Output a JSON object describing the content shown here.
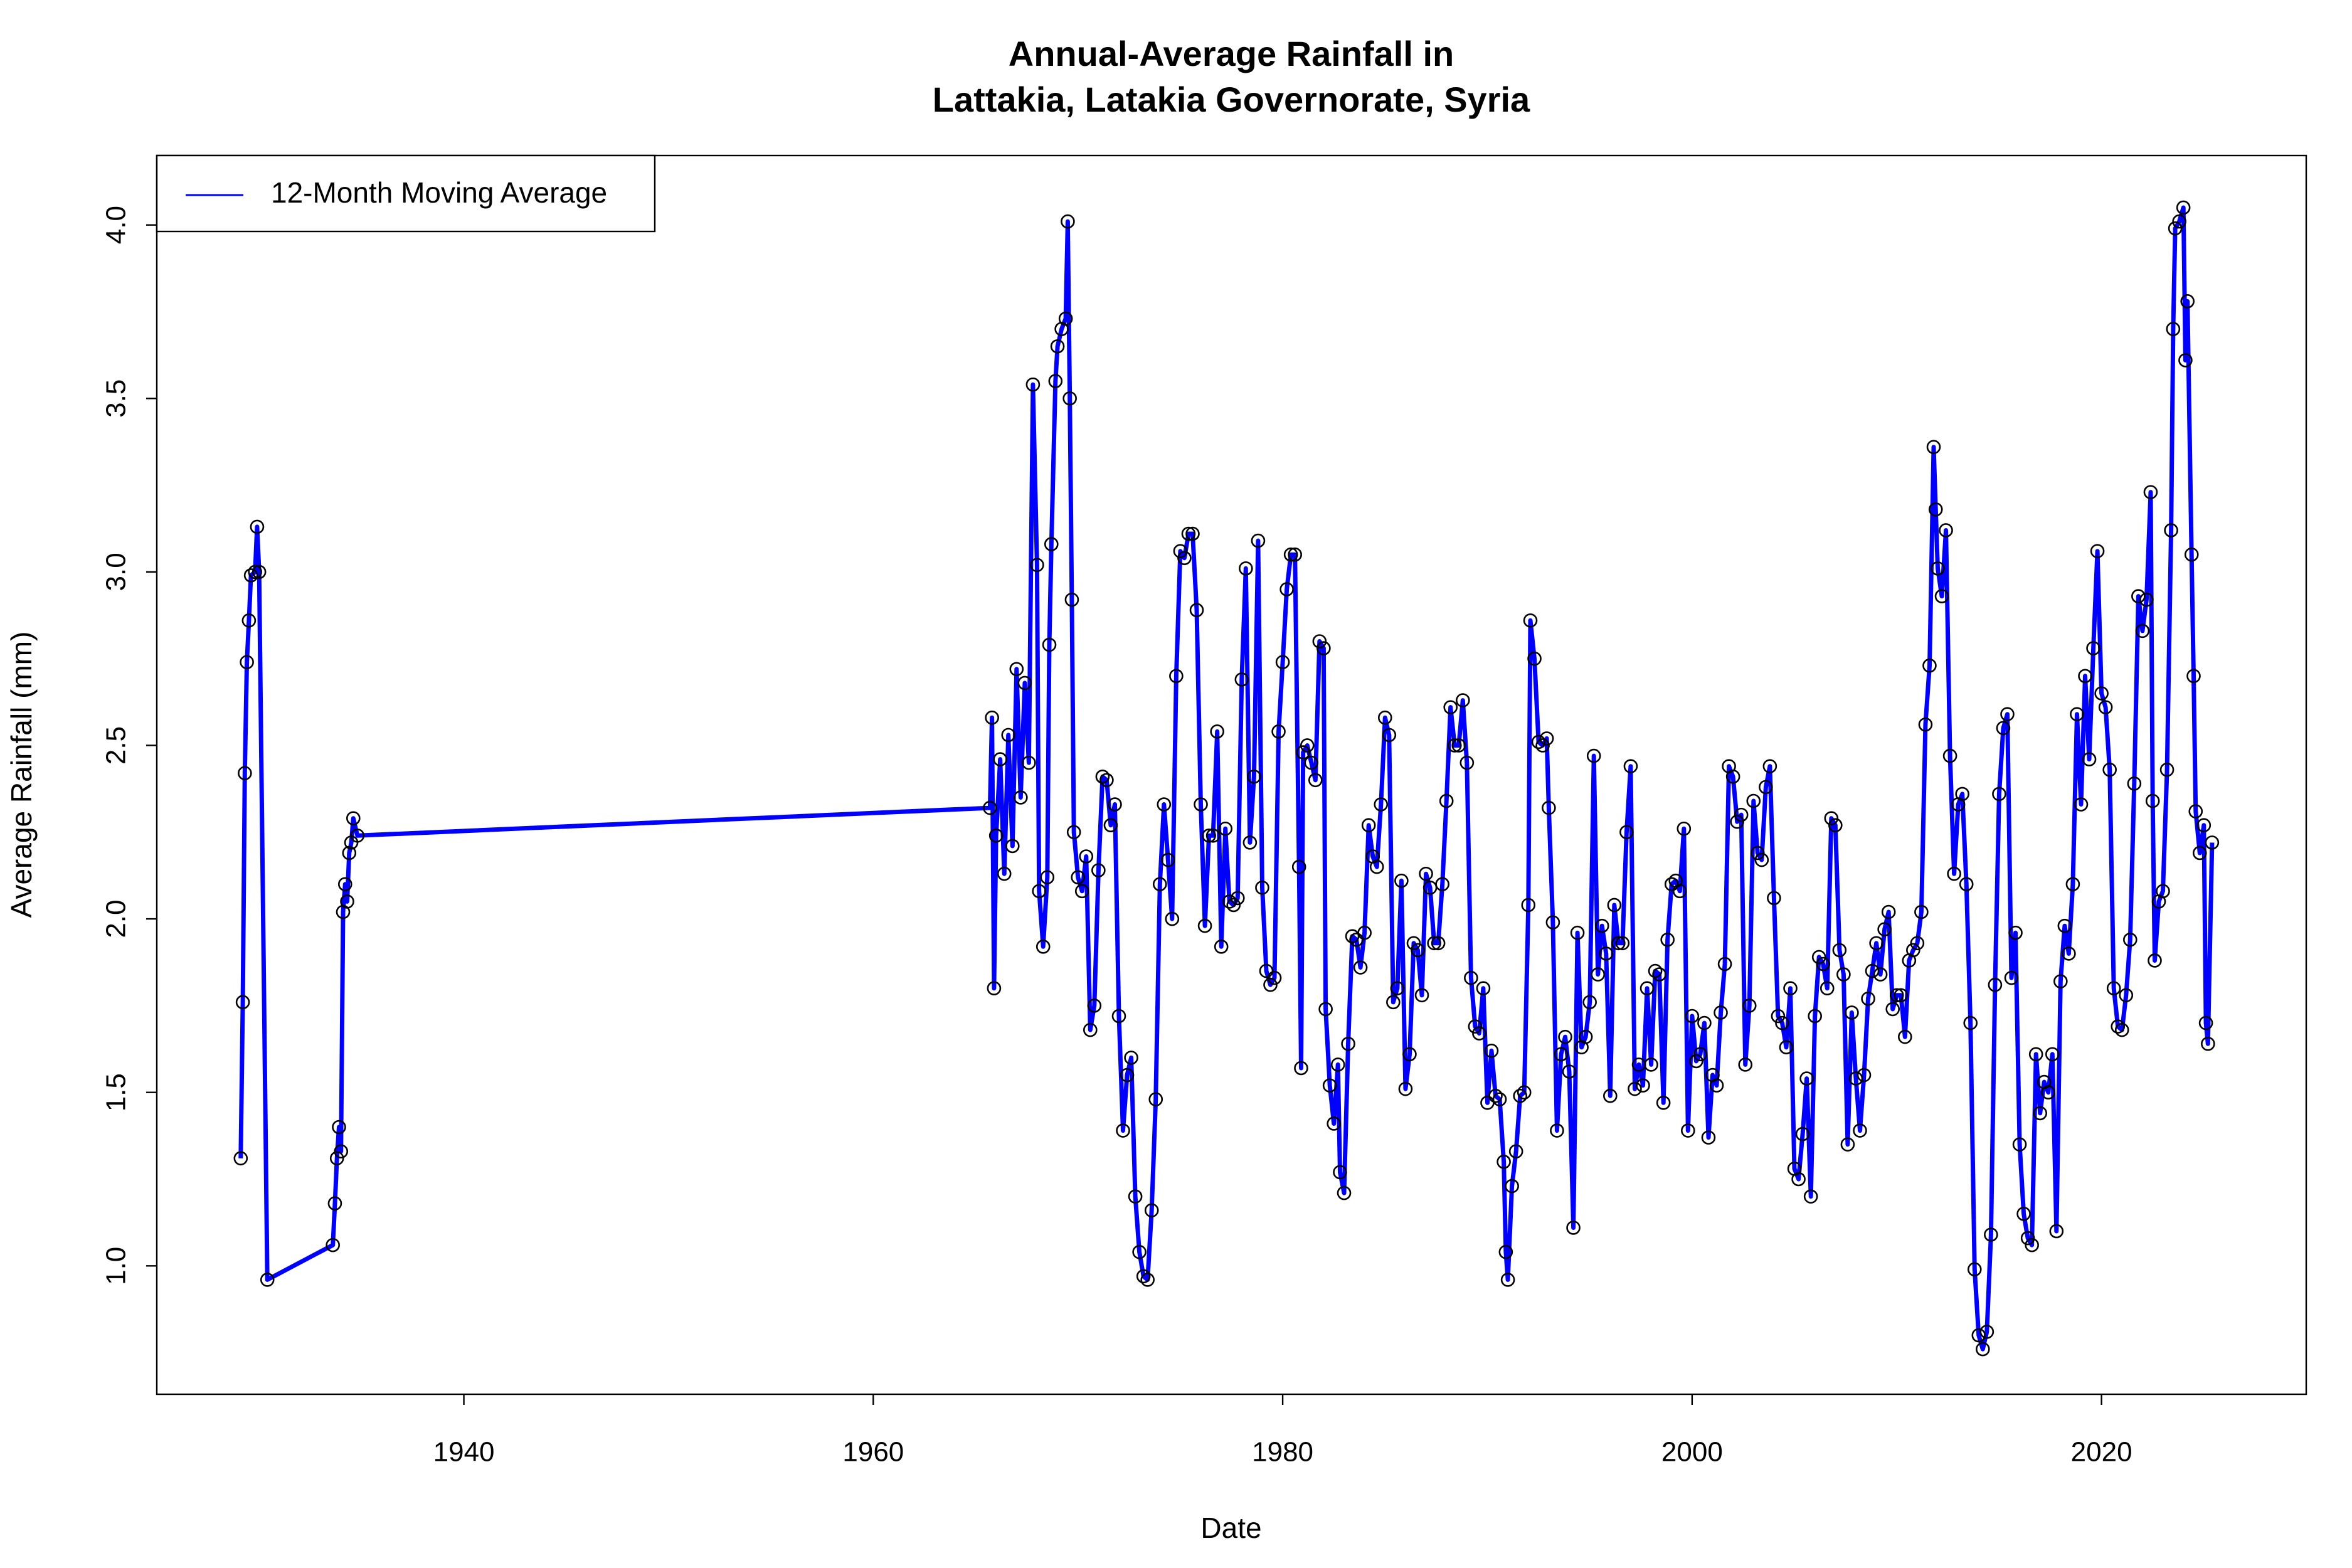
{
  "chart_data": {
    "type": "line",
    "title": [
      "Annual-Average Rainfall in",
      "Lattakia, Latakia Governorate, Syria"
    ],
    "x_label": "Date",
    "y_label": "Average Rainfall (mm)",
    "xlim": [
      1925,
      2030
    ],
    "ylim": [
      0.63,
      4.2
    ],
    "xticks": [
      1940,
      1960,
      1980,
      2000,
      2020
    ],
    "yticks": [
      {
        "value": 1,
        "label": "1.0"
      },
      1.5,
      {
        "value": 2,
        "label": "2.0"
      },
      2.5,
      {
        "value": 3,
        "label": "3.0"
      },
      3.5,
      {
        "value": 4,
        "label": "4.0"
      }
    ],
    "legend": "topleft",
    "point_color": "#000000",
    "x": [
      1929.1,
      1929.2,
      1929.3,
      1929.4,
      1929.5,
      1929.6,
      1929.8,
      1929.9,
      1930.0,
      1930.4,
      1933.6,
      1933.7,
      1933.8,
      1933.9,
      1934.0,
      1934.1,
      1934.2,
      1934.3,
      1934.4,
      1934.5,
      1934.6,
      1934.8,
      1965.7,
      1965.8,
      1965.9,
      1966.0,
      1966.2,
      1966.4,
      1966.6,
      1966.8,
      1967.0,
      1967.2,
      1967.4,
      1967.6,
      1967.8,
      1968.0,
      1968.1,
      1968.3,
      1968.5,
      1968.6,
      1968.7,
      1968.9,
      1969.0,
      1969.2,
      1969.4,
      1969.5,
      1969.6,
      1969.7,
      1969.8,
      1970.0,
      1970.2,
      1970.4,
      1970.6,
      1970.8,
      1971.0,
      1971.2,
      1971.4,
      1971.6,
      1971.8,
      1972.0,
      1972.2,
      1972.4,
      1972.6,
      1972.8,
      1973.0,
      1973.2,
      1973.4,
      1973.6,
      1973.8,
      1974.0,
      1974.2,
      1974.4,
      1974.6,
      1974.8,
      1975.0,
      1975.2,
      1975.4,
      1975.6,
      1975.8,
      1976.0,
      1976.2,
      1976.4,
      1976.6,
      1976.8,
      1977.0,
      1977.2,
      1977.4,
      1977.6,
      1977.8,
      1978.0,
      1978.2,
      1978.4,
      1978.6,
      1978.8,
      1979.0,
      1979.2,
      1979.4,
      1979.6,
      1979.8,
      1980.0,
      1980.2,
      1980.4,
      1980.6,
      1980.8,
      1980.9,
      1981.0,
      1981.2,
      1981.4,
      1981.6,
      1981.8,
      1982.0,
      1982.1,
      1982.3,
      1982.5,
      1982.7,
      1982.8,
      1983.0,
      1983.2,
      1983.4,
      1983.6,
      1983.8,
      1984.0,
      1984.2,
      1984.4,
      1984.6,
      1984.8,
      1985.0,
      1985.2,
      1985.4,
      1985.6,
      1985.8,
      1986.0,
      1986.2,
      1986.4,
      1986.6,
      1986.8,
      1987.0,
      1987.2,
      1987.4,
      1987.6,
      1987.8,
      1988.0,
      1988.2,
      1988.4,
      1988.6,
      1988.8,
      1989.0,
      1989.2,
      1989.4,
      1989.6,
      1989.8,
      1990.0,
      1990.2,
      1990.4,
      1990.6,
      1990.8,
      1990.9,
      1991.0,
      1991.2,
      1991.4,
      1991.6,
      1991.8,
      1992.0,
      1992.1,
      1992.3,
      1992.5,
      1992.7,
      1992.9,
      1993.0,
      1993.2,
      1993.4,
      1993.6,
      1993.8,
      1994.0,
      1994.2,
      1994.4,
      1994.6,
      1994.8,
      1995.0,
      1995.2,
      1995.4,
      1995.6,
      1995.8,
      1996.0,
      1996.2,
      1996.4,
      1996.6,
      1996.8,
      1997.0,
      1997.2,
      1997.4,
      1997.6,
      1997.8,
      1998.0,
      1998.2,
      1998.4,
      1998.6,
      1998.8,
      1999.0,
      1999.2,
      1999.4,
      1999.6,
      1999.8,
      2000.0,
      2000.2,
      2000.4,
      2000.6,
      2000.8,
      2001.0,
      2001.2,
      2001.4,
      2001.6,
      2001.8,
      2002.0,
      2002.2,
      2002.4,
      2002.6,
      2002.8,
      2003.0,
      2003.2,
      2003.4,
      2003.6,
      2003.8,
      2004.0,
      2004.2,
      2004.4,
      2004.6,
      2004.8,
      2005.0,
      2005.2,
      2005.4,
      2005.6,
      2005.8,
      2006.0,
      2006.2,
      2006.4,
      2006.6,
      2006.8,
      2007.0,
      2007.2,
      2007.4,
      2007.6,
      2007.8,
      2008.0,
      2008.2,
      2008.4,
      2008.6,
      2008.8,
      2009.0,
      2009.2,
      2009.4,
      2009.6,
      2009.8,
      2010.0,
      2010.2,
      2010.4,
      2010.6,
      2010.8,
      2011.0,
      2011.2,
      2011.4,
      2011.6,
      2011.8,
      2011.9,
      2012.0,
      2012.2,
      2012.4,
      2012.6,
      2012.8,
      2013.0,
      2013.2,
      2013.4,
      2013.6,
      2013.8,
      2014.0,
      2014.2,
      2014.4,
      2014.6,
      2014.8,
      2015.0,
      2015.2,
      2015.4,
      2015.6,
      2015.8,
      2016.0,
      2016.2,
      2016.4,
      2016.6,
      2016.8,
      2017.0,
      2017.2,
      2017.4,
      2017.6,
      2017.8,
      2018.0,
      2018.2,
      2018.4,
      2018.6,
      2018.8,
      2019.0,
      2019.2,
      2019.4,
      2019.6,
      2019.8,
      2020.0,
      2020.2,
      2020.4,
      2020.6,
      2020.8,
      2021.0,
      2021.2,
      2021.4,
      2021.6,
      2021.8,
      2022.0,
      2022.2,
      2022.4,
      2022.5,
      2022.6,
      2022.8,
      2023.0,
      2023.2,
      2023.4,
      2023.5,
      2023.6,
      2023.8,
      2024.0,
      2024.1,
      2024.2,
      2024.4,
      2024.5,
      2024.6,
      2024.8,
      2025.0,
      2025.1,
      2025.2,
      2025.4
    ],
    "series": [
      {
        "name": "12-Month Moving Average",
        "color": "#0000ff",
        "values": [
          1.31,
          1.76,
          2.42,
          2.74,
          2.86,
          2.99,
          3.0,
          3.13,
          3.0,
          0.96,
          1.06,
          1.18,
          1.31,
          1.4,
          1.33,
          2.02,
          2.1,
          2.05,
          2.19,
          2.22,
          2.29,
          2.24,
          2.32,
          2.58,
          1.8,
          2.24,
          2.46,
          2.13,
          2.53,
          2.21,
          2.72,
          2.35,
          2.68,
          2.45,
          3.54,
          3.02,
          2.08,
          1.92,
          2.12,
          2.79,
          3.08,
          3.55,
          3.65,
          3.7,
          3.73,
          4.01,
          3.5,
          2.92,
          2.25,
          2.12,
          2.08,
          2.18,
          1.68,
          1.75,
          2.14,
          2.41,
          2.4,
          2.27,
          2.33,
          1.72,
          1.39,
          1.55,
          1.6,
          1.2,
          1.04,
          0.97,
          0.96,
          1.16,
          1.48,
          2.1,
          2.33,
          2.17,
          2.0,
          2.7,
          3.06,
          3.04,
          3.11,
          3.11,
          2.89,
          2.33,
          1.98,
          2.24,
          2.24,
          2.54,
          1.92,
          2.26,
          2.05,
          2.04,
          2.06,
          2.69,
          3.01,
          2.22,
          2.41,
          3.09,
          2.09,
          1.85,
          1.81,
          1.83,
          2.54,
          2.74,
          2.95,
          3.05,
          3.05,
          2.15,
          1.57,
          2.48,
          2.5,
          2.45,
          2.4,
          2.8,
          2.78,
          1.74,
          1.52,
          1.41,
          1.58,
          1.27,
          1.21,
          1.64,
          1.95,
          1.94,
          1.86,
          1.96,
          2.27,
          2.18,
          2.15,
          2.33,
          2.58,
          2.53,
          1.76,
          1.8,
          2.11,
          1.51,
          1.61,
          1.93,
          1.91,
          1.78,
          2.13,
          2.09,
          1.93,
          1.93,
          2.1,
          2.34,
          2.61,
          2.5,
          2.5,
          2.63,
          2.45,
          1.83,
          1.69,
          1.67,
          1.8,
          1.47,
          1.62,
          1.49,
          1.48,
          1.3,
          1.04,
          0.96,
          1.23,
          1.33,
          1.49,
          1.5,
          2.04,
          2.86,
          2.75,
          2.51,
          2.5,
          2.52,
          2.32,
          1.99,
          1.39,
          1.61,
          1.66,
          1.56,
          1.11,
          1.96,
          1.63,
          1.66,
          1.76,
          2.47,
          1.84,
          1.98,
          1.9,
          1.49,
          2.04,
          1.93,
          1.93,
          2.25,
          2.44,
          1.51,
          1.58,
          1.52,
          1.8,
          1.58,
          1.85,
          1.84,
          1.47,
          1.94,
          2.1,
          2.11,
          2.08,
          2.26,
          1.39,
          1.72,
          1.59,
          1.61,
          1.7,
          1.37,
          1.55,
          1.52,
          1.73,
          1.87,
          2.44,
          2.41,
          2.28,
          2.3,
          1.58,
          1.75,
          2.34,
          2.19,
          2.17,
          2.38,
          2.44,
          2.06,
          1.72,
          1.7,
          1.63,
          1.8,
          1.28,
          1.25,
          1.38,
          1.54,
          1.2,
          1.72,
          1.89,
          1.87,
          1.8,
          2.29,
          2.27,
          1.91,
          1.84,
          1.35,
          1.73,
          1.54,
          1.39,
          1.55,
          1.77,
          1.85,
          1.93,
          1.84,
          1.97,
          2.02,
          1.74,
          1.78,
          1.78,
          1.66,
          1.88,
          1.91,
          1.93,
          2.02,
          2.56,
          2.73,
          3.36,
          3.18,
          3.01,
          2.93,
          3.12,
          2.47,
          2.13,
          2.33,
          2.36,
          2.1,
          1.7,
          0.99,
          0.8,
          0.76,
          0.81,
          1.09,
          1.81,
          2.36,
          2.55,
          2.59,
          1.83,
          1.96,
          1.35,
          1.15,
          1.08,
          1.06,
          1.61,
          1.44,
          1.53,
          1.5,
          1.61,
          1.1,
          1.82,
          1.98,
          1.9,
          2.1,
          2.59,
          2.33,
          2.7,
          2.46,
          2.78,
          3.06,
          2.65,
          2.61,
          2.43,
          1.8,
          1.69,
          1.68,
          1.78,
          1.94,
          2.39,
          2.93,
          2.83,
          2.92,
          3.23,
          2.34,
          1.88,
          2.05,
          2.08,
          2.43,
          3.12,
          3.7,
          3.99,
          4.01,
          4.05,
          3.61,
          3.78,
          3.05,
          2.7,
          2.31,
          2.19,
          2.27,
          1.7,
          1.64,
          2.22
        ]
      }
    ]
  }
}
